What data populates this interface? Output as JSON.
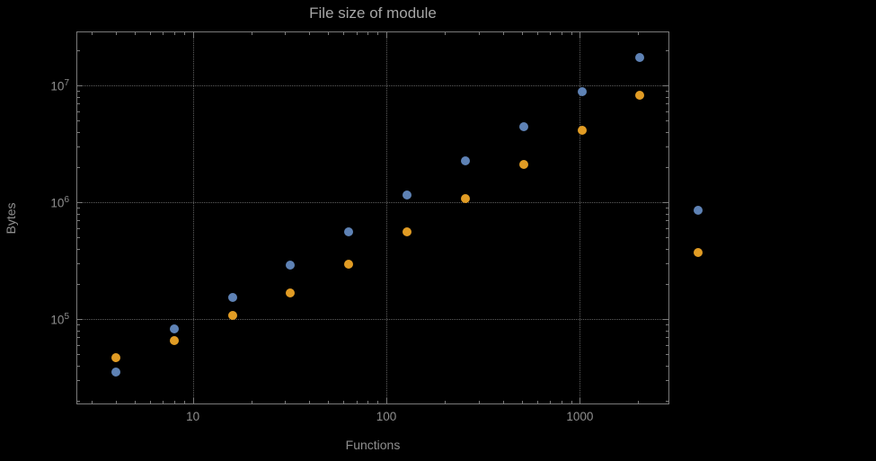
{
  "chart_data": {
    "type": "scatter",
    "scale": "log-log",
    "title": "File size of module",
    "xlabel": "Functions",
    "ylabel": "Bytes",
    "grid": true,
    "legend": "none",
    "xlim": [
      2.5,
      2900
    ],
    "ylim": [
      18600,
      29000000
    ],
    "x_ticks": [
      10,
      100,
      1000
    ],
    "x_tick_labels": [
      "10",
      "100",
      "1000"
    ],
    "y_ticks": [
      100000,
      1000000,
      10000000
    ],
    "y_tick_exponents": [
      "5",
      "6",
      "7"
    ],
    "y_tick_base": "10",
    "x": [
      4,
      8,
      16,
      32,
      64,
      128,
      256,
      512,
      1024,
      2048,
      4096
    ],
    "series": [
      {
        "name": "blue",
        "color": "#5e82b5",
        "values": [
          35000,
          82000,
          152000,
          290000,
          560000,
          1150000,
          2250000,
          4400000,
          8800000,
          17500000,
          860000
        ]
      },
      {
        "name": "orange",
        "color": "#e19c24",
        "values": [
          47000,
          66000,
          107000,
          168000,
          295000,
          560000,
          1070000,
          2100000,
          4100000,
          8300000,
          370000
        ]
      }
    ],
    "note_points_outside_frame": "the two points at x=4096 are drawn beyond the right frame edge"
  },
  "colors": {
    "background": "#000000",
    "frame": "#7a7a7a",
    "grid": "#5e5e5e",
    "text": "#8f8f8f",
    "title": "#a6a6a6",
    "series_blue": "#5e82b5",
    "series_orange": "#e19c24"
  }
}
